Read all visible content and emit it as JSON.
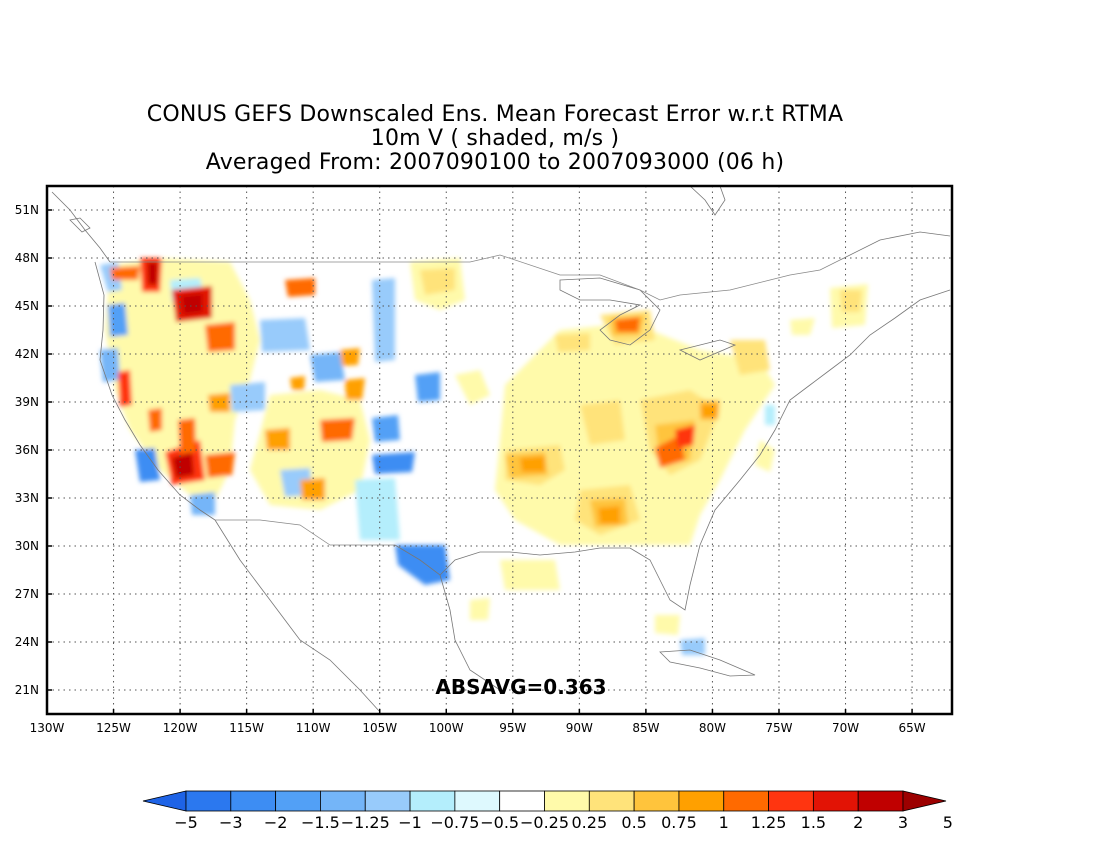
{
  "title": {
    "line1": "CONUS GEFS Downscaled Ens. Mean Forecast Error w.r.t RTMA",
    "line2": "10m V ( shaded, m/s )",
    "line3": "Averaged From: 2007090100 to 2007093000 (06 h)"
  },
  "map": {
    "lon_range": [
      -130,
      -62
    ],
    "lat_range": [
      19.5,
      52.5
    ],
    "lon_ticks": [
      "130W",
      "125W",
      "120W",
      "115W",
      "110W",
      "105W",
      "100W",
      "95W",
      "90W",
      "85W",
      "80W",
      "75W",
      "70W",
      "65W"
    ],
    "lon_values": [
      -130,
      -125,
      -120,
      -115,
      -110,
      -105,
      -100,
      -95,
      -90,
      -85,
      -80,
      -75,
      -70,
      -65
    ],
    "lat_ticks": [
      "21N",
      "24N",
      "27N",
      "30N",
      "33N",
      "36N",
      "39N",
      "42N",
      "45N",
      "48N",
      "51N"
    ],
    "lat_values": [
      21,
      24,
      27,
      30,
      33,
      36,
      39,
      42,
      45,
      48,
      51
    ],
    "grid": "dotted",
    "statistic": "ABSAVG=0.363"
  },
  "colorbar": {
    "labels": [
      "−5",
      "−3",
      "−2",
      "−1.5",
      "−1.25",
      "−1",
      "−0.75",
      "−0.5",
      "−0.25",
      "0.25",
      "0.5",
      "0.75",
      "1",
      "1.25",
      "1.5",
      "2",
      "3",
      "5"
    ],
    "colors": [
      "#1e63e6",
      "#2b78ef",
      "#3d8df3",
      "#52a0f6",
      "#74b5f8",
      "#98cbfb",
      "#b4eefc",
      "#def9fe",
      "#ffffff",
      "#fffaaa",
      "#ffe37a",
      "#ffc43c",
      "#ffa000",
      "#ff6a00",
      "#ff3510",
      "#e21305",
      "#c00000",
      "#9c0000"
    ]
  }
}
